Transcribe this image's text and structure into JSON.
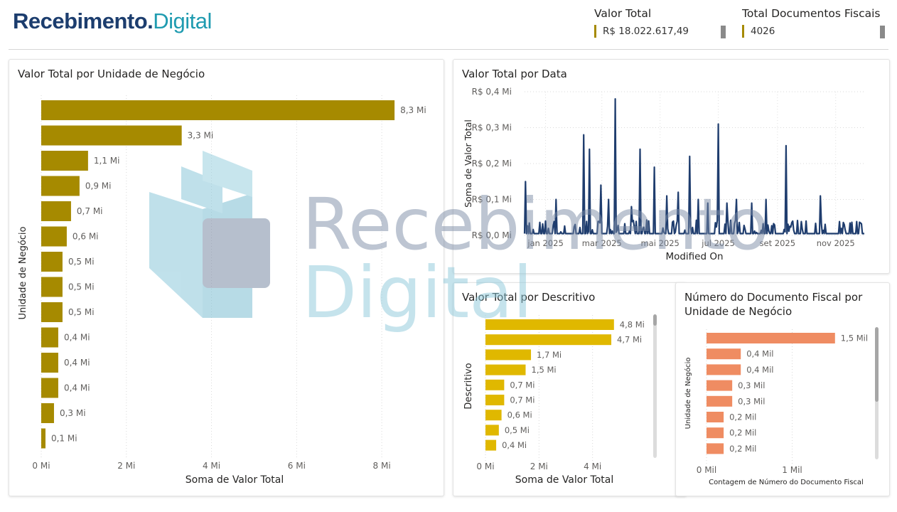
{
  "header": {
    "logo_part1": "Recebimento.",
    "logo_part2": "Digital",
    "kpis": [
      {
        "label": "Valor Total",
        "value": "R$ 18.022.617,49"
      },
      {
        "label": "Total Documentos Fiscais",
        "value": "4026"
      }
    ]
  },
  "watermark": {
    "line1": "Recebimento",
    "line2": "Digital"
  },
  "colors": {
    "gold": "#a68a00",
    "yellow": "#e0b800",
    "navy": "#1f3d6e",
    "salmon": "#ef8c62"
  },
  "chart_data": [
    {
      "id": "unit",
      "type": "bar",
      "orientation": "horizontal",
      "title": "Valor Total por Unidade de Negócio",
      "xlabel": "Soma de Valor Total",
      "ylabel": "Unidade de Negócio",
      "x_ticks": [
        "0 Mi",
        "2 Mi",
        "4 Mi",
        "6 Mi",
        "8 Mi"
      ],
      "x_tick_values": [
        0,
        2,
        4,
        6,
        8
      ],
      "xlim": [
        0,
        9.1
      ],
      "values": [
        8.3,
        3.3,
        1.1,
        0.9,
        0.7,
        0.6,
        0.5,
        0.5,
        0.5,
        0.4,
        0.4,
        0.4,
        0.3,
        0.1
      ],
      "labels": [
        "8,3 Mi",
        "3,3 Mi",
        "1,1 Mi",
        "0,9 Mi",
        "0,7 Mi",
        "0,6 Mi",
        "0,5 Mi",
        "0,5 Mi",
        "0,5 Mi",
        "0,4 Mi",
        "0,4 Mi",
        "0,4 Mi",
        "0,3 Mi",
        "0,1 Mi"
      ],
      "color": "#a68a00"
    },
    {
      "id": "date",
      "type": "line",
      "title": "Valor Total por Data",
      "xlabel": "Modified On",
      "ylabel": "Soma de Valor Total",
      "y_ticks": [
        "R$ 0,0 Mi",
        "R$ 0,1 Mi",
        "R$ 0,2 Mi",
        "R$ 0,3 Mi",
        "R$ 0,4 Mi"
      ],
      "y_tick_values": [
        0,
        0.1,
        0.2,
        0.3,
        0.4
      ],
      "ylim": [
        0,
        0.4
      ],
      "x_ticks": [
        "jan 2025",
        "mar 2025",
        "mai 2025",
        "jul 2025",
        "set 2025",
        "nov 2025"
      ],
      "x_tick_dates": [
        "2025-01-01",
        "2025-03-01",
        "2025-05-01",
        "2025-07-01",
        "2025-09-01",
        "2025-11-01"
      ],
      "xlim": [
        "2024-12-10",
        "2025-12-01"
      ],
      "baseline": 0.005,
      "spikes": [
        [
          "2024-12-11",
          0.15
        ],
        [
          "2025-01-12",
          0.1
        ],
        [
          "2025-02-10",
          0.28
        ],
        [
          "2025-02-16",
          0.24
        ],
        [
          "2025-02-28",
          0.14
        ],
        [
          "2025-03-08",
          0.1
        ],
        [
          "2025-03-15",
          0.38
        ],
        [
          "2025-04-01",
          0.08
        ],
        [
          "2025-04-10",
          0.24
        ],
        [
          "2025-04-25",
          0.19
        ],
        [
          "2025-05-08",
          0.11
        ],
        [
          "2025-05-20",
          0.12
        ],
        [
          "2025-06-01",
          0.22
        ],
        [
          "2025-06-10",
          0.1
        ],
        [
          "2025-06-20",
          0.09
        ],
        [
          "2025-07-01",
          0.31
        ],
        [
          "2025-07-10",
          0.09
        ],
        [
          "2025-07-20",
          0.1
        ],
        [
          "2025-08-05",
          0.09
        ],
        [
          "2025-08-20",
          0.1
        ],
        [
          "2025-09-10",
          0.25
        ],
        [
          "2025-10-01",
          0.04
        ],
        [
          "2025-10-16",
          0.11
        ],
        [
          "2025-11-10",
          0.03
        ]
      ],
      "color": "#1f3d6e"
    },
    {
      "id": "desc",
      "type": "bar",
      "orientation": "horizontal",
      "title": "Valor Total por Descritivo",
      "xlabel": "Soma de Valor Total",
      "ylabel": "Descritivo",
      "x_ticks": [
        "0 Mi",
        "2 Mi",
        "4 Mi"
      ],
      "x_tick_values": [
        0,
        2,
        4
      ],
      "xlim": [
        0,
        6.0
      ],
      "values": [
        4.8,
        4.7,
        1.7,
        1.5,
        0.7,
        0.7,
        0.6,
        0.5,
        0.4
      ],
      "labels": [
        "4,8 Mi",
        "4,7 Mi",
        "1,7 Mi",
        "1,5 Mi",
        "0,7 Mi",
        "0,7 Mi",
        "0,6 Mi",
        "0,5 Mi",
        "0,4 Mi"
      ],
      "color": "#e0b800"
    },
    {
      "id": "count",
      "type": "bar",
      "orientation": "horizontal",
      "title": "Número do Documento Fiscal por Unidade de Negócio",
      "xlabel": "Contagem de Número do Documento Fiscal",
      "ylabel": "Unidade de Negócio",
      "x_ticks": [
        "0 Mil",
        "1 Mil"
      ],
      "x_tick_values": [
        0,
        1
      ],
      "xlim": [
        0,
        1.9
      ],
      "values": [
        1.5,
        0.4,
        0.4,
        0.3,
        0.3,
        0.2,
        0.2,
        0.2
      ],
      "labels": [
        "1,5 Mil",
        "0,4 Mil",
        "0,4 Mil",
        "0,3 Mil",
        "0,3 Mil",
        "0,2 Mil",
        "0,2 Mil",
        "0,2 Mil"
      ],
      "color": "#ef8c62"
    }
  ]
}
